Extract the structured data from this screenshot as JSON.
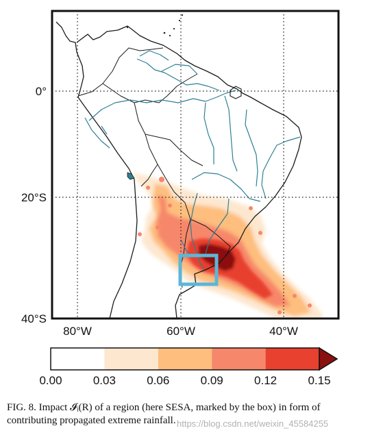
{
  "map": {
    "lat_labels": [
      "0°",
      "20°S",
      "40°S"
    ],
    "lon_labels": [
      "80°W",
      "60°W",
      "40°W"
    ],
    "gridlines": "dotted",
    "box_region": "SESA",
    "colors": {
      "land_outline": "#1a1a1a",
      "rivers": "#2d7f95",
      "region_box": "#5ab7d9",
      "frame": "#111111"
    }
  },
  "colorbar": {
    "ticks": [
      "0.00",
      "0.03",
      "0.06",
      "0.09",
      "0.12",
      "0.15"
    ],
    "colors": [
      "#ffffff",
      "#fde7cf",
      "#fdbe7e",
      "#f7876a",
      "#e8412f",
      "#8b1010"
    ],
    "extend": "max"
  },
  "caption": {
    "text": "FIG. 8. Impact 𝓘ᵢ(R) of a region (here SESA, marked by the box) in form of contributing propagated extreme rainfall."
  },
  "watermark": "https://blog.csdn.net/weixin_45584255"
}
